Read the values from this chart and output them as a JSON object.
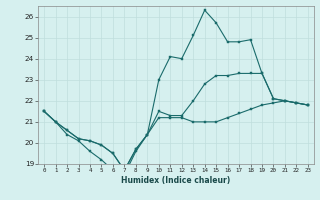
{
  "xlabel": "Humidex (Indice chaleur)",
  "background_color": "#d6f0ef",
  "grid_color": "#c0dedd",
  "line_color": "#1a6b6b",
  "xlim": [
    -0.5,
    23.5
  ],
  "ylim": [
    19,
    26.5
  ],
  "yticks": [
    19,
    20,
    21,
    22,
    23,
    24,
    25,
    26
  ],
  "xticks": [
    0,
    1,
    2,
    3,
    4,
    5,
    6,
    7,
    8,
    9,
    10,
    11,
    12,
    13,
    14,
    15,
    16,
    17,
    18,
    19,
    20,
    21,
    22,
    23
  ],
  "series": [
    [
      21.5,
      21.0,
      20.4,
      20.1,
      19.6,
      19.2,
      18.7,
      18.5,
      19.6,
      20.4,
      21.2,
      21.2,
      21.2,
      21.0,
      21.0,
      21.0,
      21.2,
      21.4,
      21.6,
      21.8,
      21.9,
      22.0,
      21.9,
      21.8
    ],
    [
      21.5,
      21.0,
      20.6,
      20.2,
      20.1,
      19.9,
      19.5,
      18.7,
      19.7,
      20.4,
      23.0,
      24.1,
      24.0,
      25.1,
      26.3,
      25.7,
      24.8,
      24.8,
      24.9,
      23.3,
      22.1,
      22.0,
      21.9,
      21.8
    ],
    [
      21.5,
      21.0,
      20.6,
      20.2,
      20.1,
      19.9,
      19.5,
      18.7,
      19.7,
      20.4,
      21.5,
      21.3,
      21.3,
      22.0,
      22.8,
      23.2,
      23.2,
      23.3,
      23.3,
      23.3,
      22.1,
      22.0,
      21.9,
      21.8
    ]
  ],
  "xlabel_fontsize": 5.5,
  "xlabel_fontweight": "bold",
  "xtick_fontsize": 4.2,
  "ytick_fontsize": 5.2,
  "marker_size": 1.8,
  "line_width": 0.8
}
